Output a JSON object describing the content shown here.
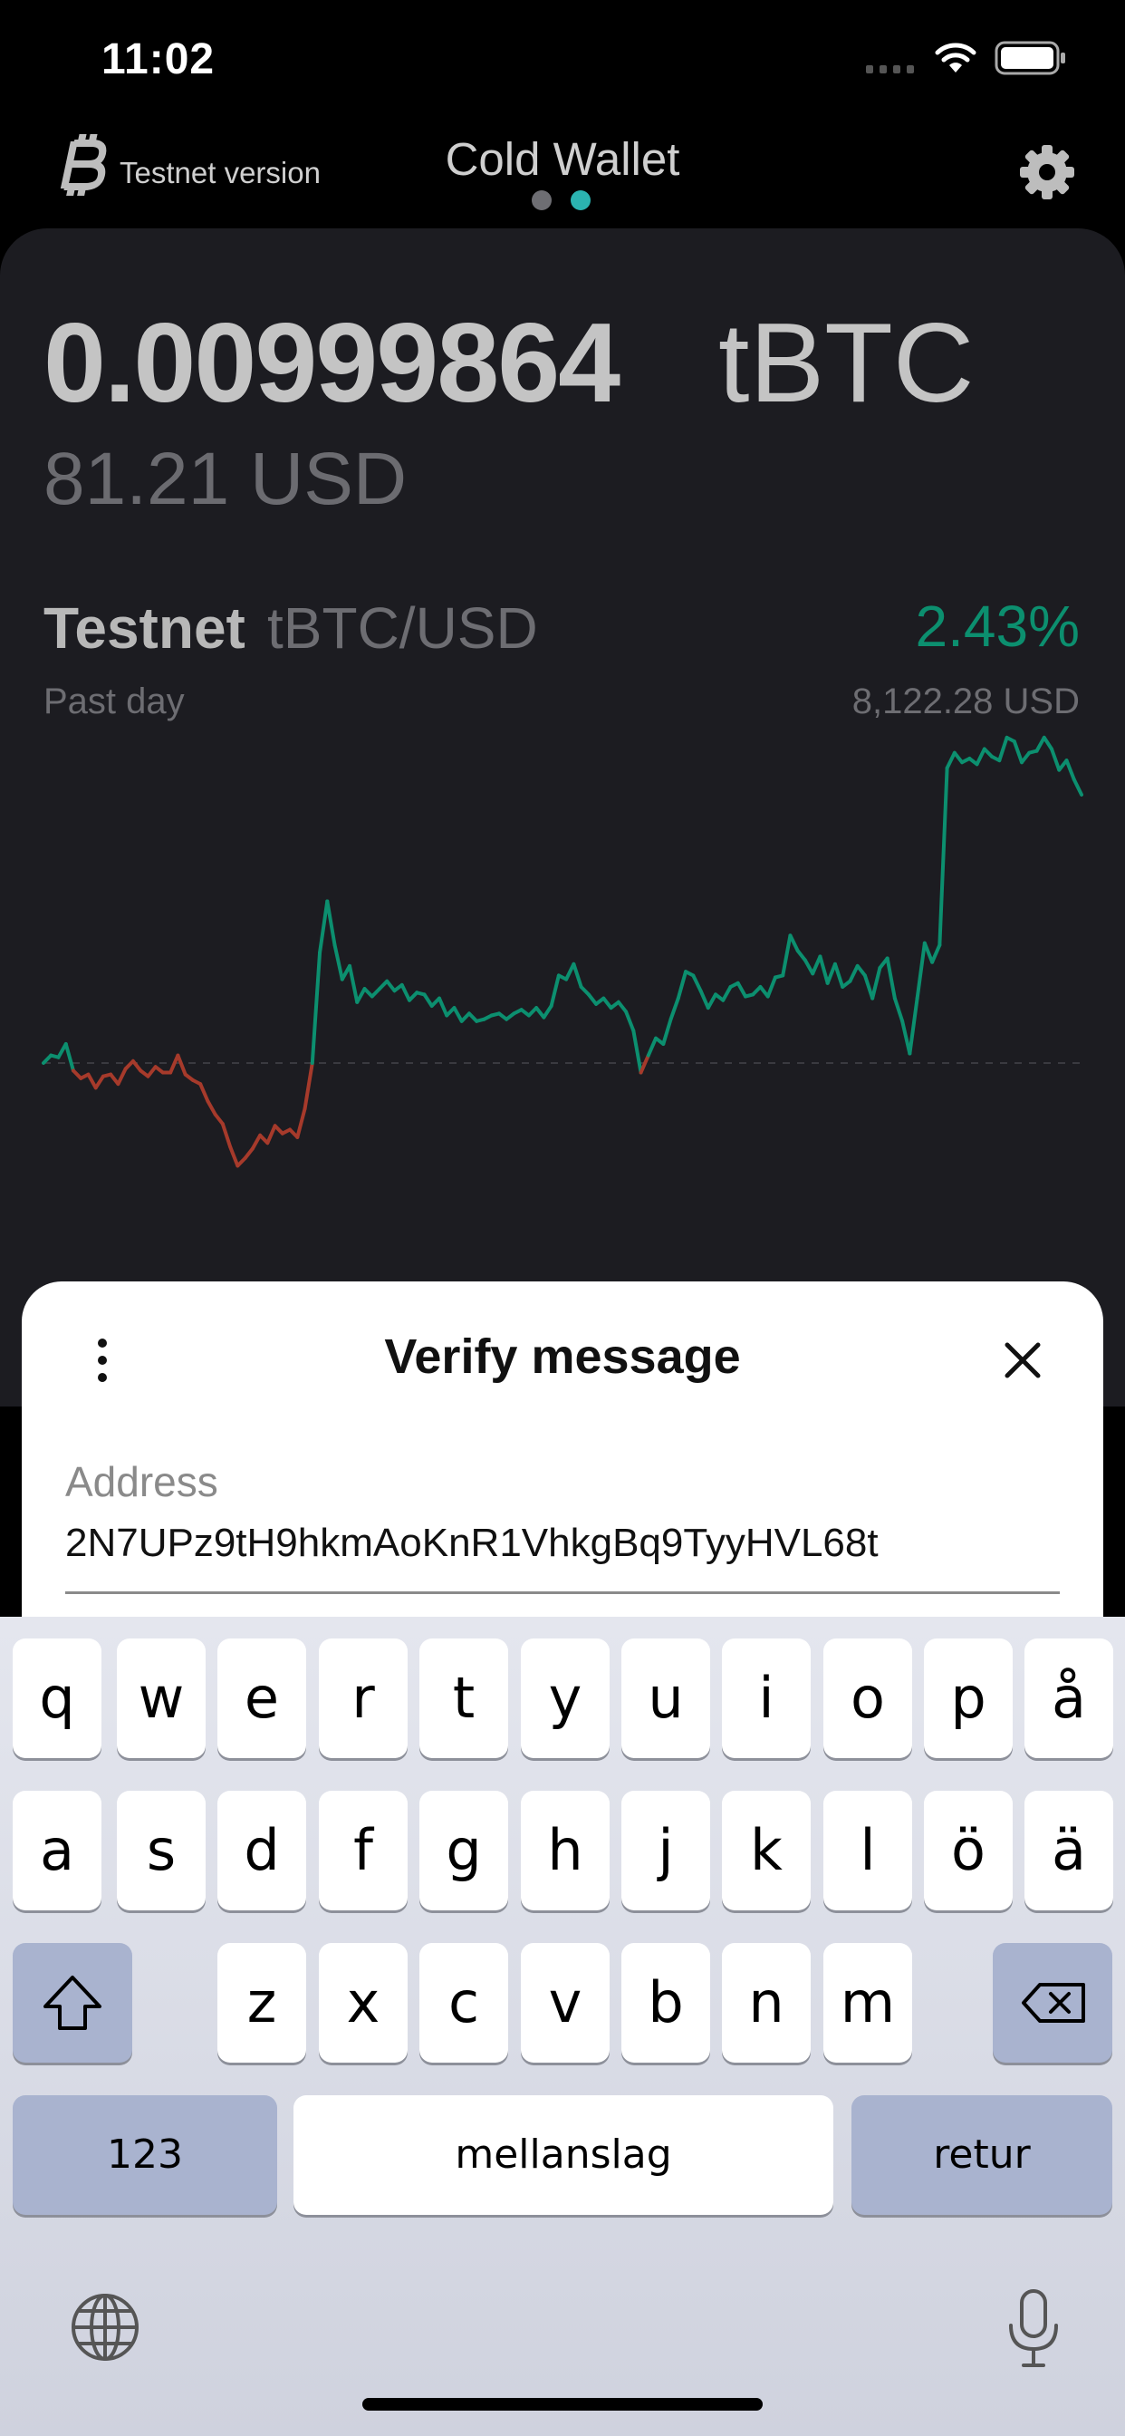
{
  "status_bar": {
    "time": "11:02"
  },
  "header": {
    "title": "Cold Wallet",
    "testnet_label": "Testnet version",
    "page_dots": [
      "inactive",
      "active"
    ],
    "logo_icon": "bitcoin-icon",
    "settings_icon": "gear-icon"
  },
  "balance": {
    "amount": "0.00999864",
    "unit": "tBTC",
    "fiat": "81.21 USD"
  },
  "price_card": {
    "network": "Testnet",
    "pair": "tBTC/USD",
    "period": "Past day",
    "change": "2.43%",
    "price": "8,122.28 USD"
  },
  "chart_data": {
    "type": "line",
    "title": "",
    "x": [
      0,
      1,
      2,
      3,
      4,
      5,
      6,
      7,
      8,
      9,
      10,
      11,
      12,
      13,
      14,
      15,
      16,
      17,
      18,
      19,
      20,
      21,
      22,
      23,
      24,
      25,
      26,
      27,
      28,
      29,
      30,
      31,
      32,
      33,
      34,
      35,
      36,
      37,
      38,
      39,
      40,
      41,
      42,
      43,
      44,
      45,
      46,
      47,
      48,
      49,
      50,
      51,
      52,
      53,
      54,
      55,
      56,
      57,
      58,
      59,
      60,
      61,
      62,
      63,
      64,
      65,
      66,
      67,
      68,
      69,
      70,
      71,
      72,
      73,
      74,
      75,
      76,
      77,
      78,
      79,
      80,
      81,
      82,
      83,
      84,
      85,
      86,
      87,
      88,
      89,
      90,
      91,
      92,
      93,
      94,
      95,
      96,
      97,
      98,
      99,
      100,
      101,
      102,
      103,
      104,
      105,
      106,
      107,
      108,
      109,
      110,
      111,
      112,
      113,
      114,
      115,
      116,
      117,
      118,
      119,
      120,
      121,
      122,
      123,
      124,
      125,
      126,
      127,
      128,
      129,
      130,
      131,
      132,
      133,
      134,
      135,
      136,
      137,
      138,
      139
    ],
    "values": [
      0.0,
      0.4,
      0.3,
      1.0,
      -0.4,
      -0.8,
      -0.6,
      -1.3,
      -0.7,
      -0.6,
      -1.1,
      -0.3,
      0.1,
      -0.4,
      -0.7,
      -0.2,
      -0.5,
      -0.5,
      0.4,
      -0.6,
      -0.9,
      -1.1,
      -2.0,
      -2.7,
      -3.2,
      -4.4,
      -5.4,
      -5.0,
      -4.5,
      -3.8,
      -4.2,
      -3.3,
      -3.7,
      -3.5,
      -3.9,
      -2.4,
      0.0,
      5.8,
      8.5,
      6.2,
      4.4,
      5.1,
      3.2,
      3.9,
      3.5,
      3.9,
      4.3,
      3.8,
      4.1,
      3.3,
      3.7,
      3.6,
      3.0,
      3.4,
      2.5,
      2.9,
      2.2,
      2.6,
      2.2,
      2.3,
      2.5,
      2.6,
      2.3,
      2.6,
      2.8,
      2.5,
      2.9,
      2.4,
      3.0,
      4.6,
      4.4,
      5.2,
      4.0,
      3.6,
      3.1,
      3.4,
      2.9,
      3.2,
      2.7,
      1.7,
      -0.5,
      0.4,
      1.3,
      1.0,
      2.3,
      3.4,
      4.8,
      4.6,
      3.8,
      2.9,
      3.6,
      3.3,
      4.0,
      4.2,
      3.5,
      3.6,
      4.0,
      3.5,
      4.5,
      4.6,
      6.7,
      5.9,
      5.4,
      4.7,
      5.6,
      4.2,
      5.2,
      4.0,
      4.3,
      5.1,
      4.6,
      3.4,
      5.0,
      5.5,
      3.4,
      2.2,
      0.5,
      3.4,
      6.3,
      5.3,
      6.2,
      15.5,
      16.3,
      15.8,
      16.0,
      15.7,
      16.5,
      16.1,
      15.9,
      17.1,
      16.9,
      15.8,
      16.3,
      16.4,
      17.1,
      16.5,
      15.4,
      15.9,
      14.9,
      14.1
    ],
    "baseline": 0,
    "colors": {
      "up": "#0c8f6f",
      "down": "#a63a2b",
      "baseline": "#3a3a40"
    }
  },
  "sheet": {
    "title": "Verify message",
    "menu_icon": "more-vertical-icon",
    "close_icon": "close-icon",
    "address_label": "Address",
    "address_value": "2N7UPz9tH9hkmAoKnR1VhkgBq9TyyHVL68t"
  },
  "keyboard": {
    "row1": [
      "q",
      "w",
      "e",
      "r",
      "t",
      "y",
      "u",
      "i",
      "o",
      "p",
      "å"
    ],
    "row2": [
      "a",
      "s",
      "d",
      "f",
      "g",
      "h",
      "j",
      "k",
      "l",
      "ö",
      "ä"
    ],
    "row3": [
      "z",
      "x",
      "c",
      "v",
      "b",
      "n",
      "m"
    ],
    "numbers_key": "123",
    "space_key": "mellanslag",
    "return_key": "retur",
    "shift_icon": "shift-icon",
    "delete_icon": "backspace-icon",
    "globe_icon": "globe-icon",
    "mic_icon": "microphone-icon"
  }
}
